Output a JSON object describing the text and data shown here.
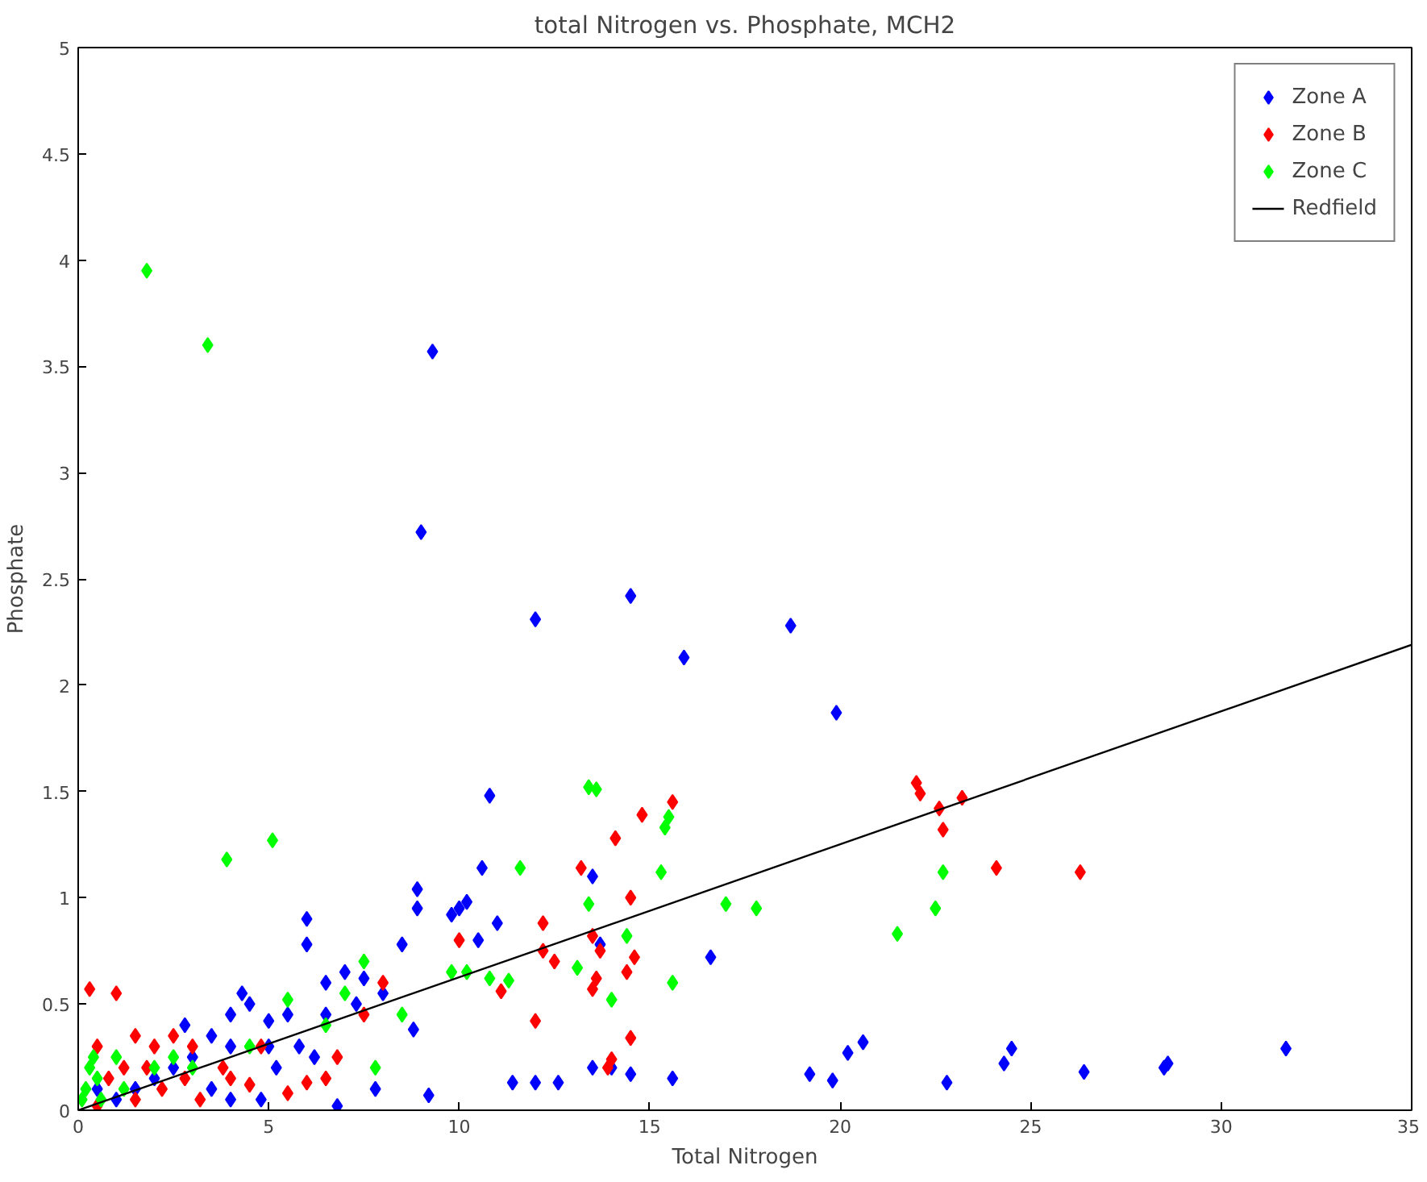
{
  "chart_data": {
    "type": "scatter",
    "title": "total Nitrogen vs. Phosphate, MCH2",
    "xlabel": "Total Nitrogen",
    "ylabel": "Phosphate",
    "xlim": [
      0,
      35
    ],
    "ylim": [
      0,
      5
    ],
    "xticks": [
      0,
      5,
      10,
      15,
      20,
      25,
      30,
      35
    ],
    "yticks": [
      0,
      0.5,
      1,
      1.5,
      2,
      2.5,
      3,
      3.5,
      4,
      4.5,
      5
    ],
    "grid": false,
    "legend": "top right",
    "marker": "diamond",
    "series": [
      {
        "name": "Zone A",
        "color": "#0000ff",
        "x": [
          9.3,
          9.0,
          12.0,
          14.5,
          15.9,
          18.7,
          19.9,
          10.8,
          8.9,
          8.9,
          10.0,
          10.6,
          10.2,
          9.8,
          11.0,
          10.5,
          13.5,
          6.0,
          6.0,
          7.0,
          6.5,
          7.5,
          8.5,
          8.0,
          7.3,
          5.5,
          6.5,
          4.5,
          5.0,
          4.0,
          4.3,
          3.5,
          3.0,
          4.0,
          5.0,
          5.8,
          6.2,
          2.5,
          2.0,
          3.5,
          4.0,
          4.8,
          6.8,
          8.8,
          9.2,
          13.7,
          11.4,
          12.0,
          12.6,
          13.5,
          14.0,
          15.6,
          16.6,
          14.5,
          19.2,
          19.8,
          20.2,
          20.6,
          22.8,
          24.3,
          24.5,
          26.4,
          28.5,
          28.6,
          31.7,
          1.0,
          1.5,
          0.5,
          2.8,
          7.8,
          5.2
        ],
        "values": [
          3.57,
          2.72,
          2.31,
          2.42,
          2.13,
          2.28,
          1.87,
          1.48,
          1.04,
          0.95,
          0.95,
          1.14,
          0.98,
          0.92,
          0.88,
          0.8,
          1.1,
          0.9,
          0.78,
          0.65,
          0.6,
          0.62,
          0.78,
          0.55,
          0.5,
          0.45,
          0.45,
          0.5,
          0.42,
          0.45,
          0.55,
          0.35,
          0.25,
          0.3,
          0.3,
          0.3,
          0.25,
          0.2,
          0.15,
          0.1,
          0.05,
          0.05,
          0.02,
          0.38,
          0.07,
          0.78,
          0.13,
          0.13,
          0.13,
          0.2,
          0.2,
          0.15,
          0.72,
          0.17,
          0.17,
          0.14,
          0.27,
          0.32,
          0.13,
          0.22,
          0.29,
          0.18,
          0.2,
          0.22,
          0.29,
          0.05,
          0.1,
          0.1,
          0.4,
          0.1,
          0.2
        ]
      },
      {
        "name": "Zone B",
        "color": "#ff0000",
        "x": [
          22.0,
          22.1,
          22.6,
          23.2,
          22.7,
          24.1,
          26.3,
          15.6,
          14.8,
          13.2,
          14.1,
          14.5,
          12.2,
          12.2,
          13.5,
          13.7,
          11.1,
          12.5,
          12.0,
          14.4,
          14.6,
          13.6,
          14.5,
          13.5,
          13.9,
          14.0,
          10.0,
          8.0,
          7.5,
          6.8,
          6.5,
          6.0,
          5.5,
          4.5,
          4.0,
          3.0,
          2.5,
          2.0,
          1.5,
          1.0,
          0.3,
          1.2,
          0.8,
          1.5,
          2.2,
          3.2,
          0.5,
          2.8,
          1.8,
          4.8,
          3.8,
          0.5
        ],
        "values": [
          1.54,
          1.49,
          1.42,
          1.47,
          1.32,
          1.14,
          1.12,
          1.45,
          1.39,
          1.14,
          1.28,
          1.0,
          0.88,
          0.75,
          0.82,
          0.75,
          0.56,
          0.7,
          0.42,
          0.65,
          0.72,
          0.62,
          0.34,
          0.57,
          0.2,
          0.24,
          0.8,
          0.6,
          0.45,
          0.25,
          0.15,
          0.13,
          0.08,
          0.12,
          0.15,
          0.3,
          0.35,
          0.3,
          0.35,
          0.55,
          0.57,
          0.2,
          0.15,
          0.05,
          0.1,
          0.05,
          0.3,
          0.15,
          0.2,
          0.3,
          0.2,
          0.02
        ]
      },
      {
        "name": "Zone C",
        "color": "#00ff00",
        "x": [
          1.8,
          3.4,
          3.9,
          5.1,
          13.4,
          13.6,
          15.4,
          15.5,
          11.6,
          15.3,
          13.4,
          17.0,
          17.8,
          21.5,
          22.5,
          22.7,
          9.8,
          10.2,
          10.8,
          11.3,
          14.4,
          15.6,
          14.0,
          13.1,
          7.5,
          7.0,
          5.5,
          8.5,
          7.8,
          6.5,
          4.5,
          3.0,
          2.0,
          1.0,
          0.5,
          0.2,
          0.3,
          0.1,
          0.6,
          1.2,
          0.4,
          2.5
        ],
        "values": [
          3.95,
          3.6,
          1.18,
          1.27,
          1.52,
          1.51,
          1.33,
          1.38,
          1.14,
          1.12,
          0.97,
          0.97,
          0.95,
          0.83,
          0.95,
          1.12,
          0.65,
          0.65,
          0.62,
          0.61,
          0.82,
          0.6,
          0.52,
          0.67,
          0.7,
          0.55,
          0.52,
          0.45,
          0.2,
          0.4,
          0.3,
          0.2,
          0.2,
          0.25,
          0.15,
          0.1,
          0.2,
          0.05,
          0.05,
          0.1,
          0.25,
          0.25
        ]
      },
      {
        "name": "Redfield",
        "type": "line",
        "marker": "none",
        "color": "#000000",
        "x": [
          0,
          35
        ],
        "values": [
          0,
          2.19
        ]
      }
    ]
  }
}
